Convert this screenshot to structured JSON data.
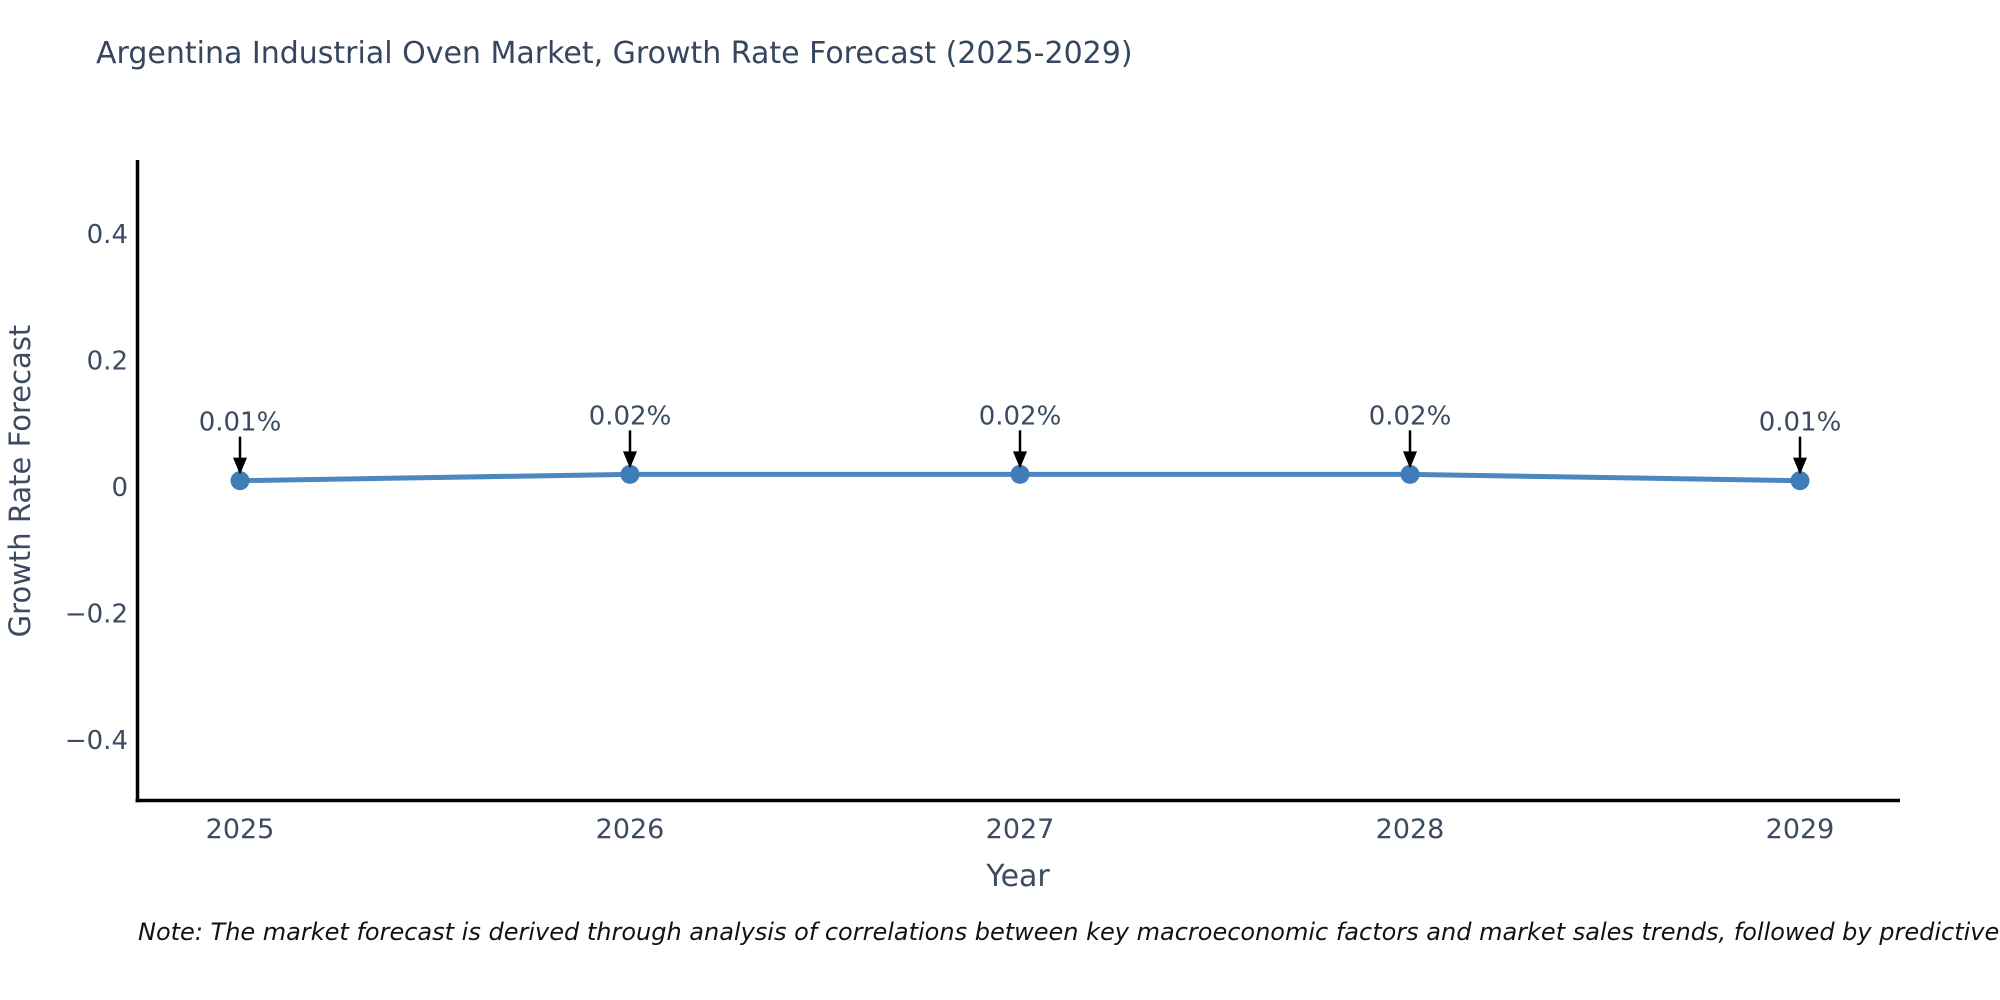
{
  "chart_data": {
    "type": "line",
    "title": "Argentina Industrial Oven Market, Growth Rate Forecast (2025-2029)",
    "xlabel": "Year",
    "ylabel": "Growth Rate Forecast",
    "categories": [
      "2025",
      "2026",
      "2027",
      "2028",
      "2029"
    ],
    "series": [
      {
        "name": "Growth Rate Forecast",
        "values": [
          0.01,
          0.02,
          0.02,
          0.02,
          0.01
        ]
      }
    ],
    "point_labels": [
      "0.01%",
      "0.02%",
      "0.02%",
      "0.02%",
      "0.01%"
    ],
    "yticks": [
      {
        "value": 0.4,
        "label": "0.4"
      },
      {
        "value": 0.2,
        "label": "0.2"
      },
      {
        "value": 0,
        "label": "0"
      },
      {
        "value": -0.2,
        "label": "−0.2"
      },
      {
        "value": -0.4,
        "label": "−0.4"
      }
    ],
    "ylim": [
      -0.5,
      0.52
    ],
    "grid": false,
    "legend": false,
    "annotation_style": "black-down-arrow",
    "colors": {
      "line": "#4d87c0",
      "marker": "#3f7cb8",
      "axis_spine": "#000000",
      "tick_text": "#3c4b61",
      "title_text": "#36465e",
      "annotation_arrow": "#000000",
      "note_text": "#111111",
      "background": "#ffffff"
    }
  },
  "note": {
    "text": "Note: The market forecast is derived through analysis of correlations between key macroeconomic factors and market sales trends, followed by predictive modeling to project future sales"
  }
}
